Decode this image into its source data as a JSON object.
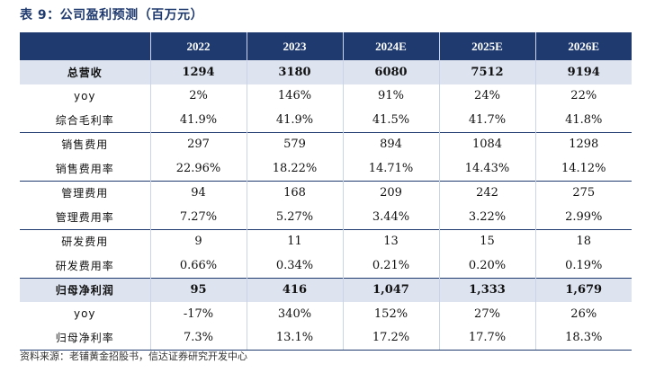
{
  "title": "表 9：公司盈利预测（百万元）",
  "table": {
    "headers": [
      "",
      "2022",
      "2023",
      "2024E",
      "2025E",
      "2026E"
    ],
    "rows": [
      {
        "label": "总营收",
        "values": [
          "1294",
          "3180",
          "6080",
          "7512",
          "9194"
        ]
      },
      {
        "label": "yoy",
        "values": [
          "2%",
          "146%",
          "91%",
          "24%",
          "22%"
        ]
      },
      {
        "label": "综合毛利率",
        "values": [
          "41.9%",
          "41.9%",
          "41.5%",
          "41.7%",
          "41.8%"
        ]
      },
      {
        "label": "销售费用",
        "values": [
          "297",
          "579",
          "894",
          "1084",
          "1298"
        ]
      },
      {
        "label": "销售费用率",
        "values": [
          "22.96%",
          "18.22%",
          "14.71%",
          "14.43%",
          "14.12%"
        ]
      },
      {
        "label": "管理费用",
        "values": [
          "94",
          "168",
          "209",
          "242",
          "275"
        ]
      },
      {
        "label": "管理费用率",
        "values": [
          "7.27%",
          "5.27%",
          "3.44%",
          "3.22%",
          "2.99%"
        ]
      },
      {
        "label": "研发费用",
        "values": [
          "9",
          "11",
          "13",
          "15",
          "18"
        ]
      },
      {
        "label": "研发费用率",
        "values": [
          "0.66%",
          "0.34%",
          "0.21%",
          "0.20%",
          "0.19%"
        ]
      },
      {
        "label": "归母净利润",
        "values": [
          "95",
          "416",
          "1,047",
          "1,333",
          "1,679"
        ]
      },
      {
        "label": "yoy",
        "values": [
          "-17%",
          "340%",
          "152%",
          "27%",
          "26%"
        ]
      },
      {
        "label": "归母净利率",
        "values": [
          "7.3%",
          "13.1%",
          "17.2%",
          "17.7%",
          "18.3%"
        ]
      }
    ]
  },
  "source": "资料来源：老铺黄金招股书，信达证券研究开发中心"
}
